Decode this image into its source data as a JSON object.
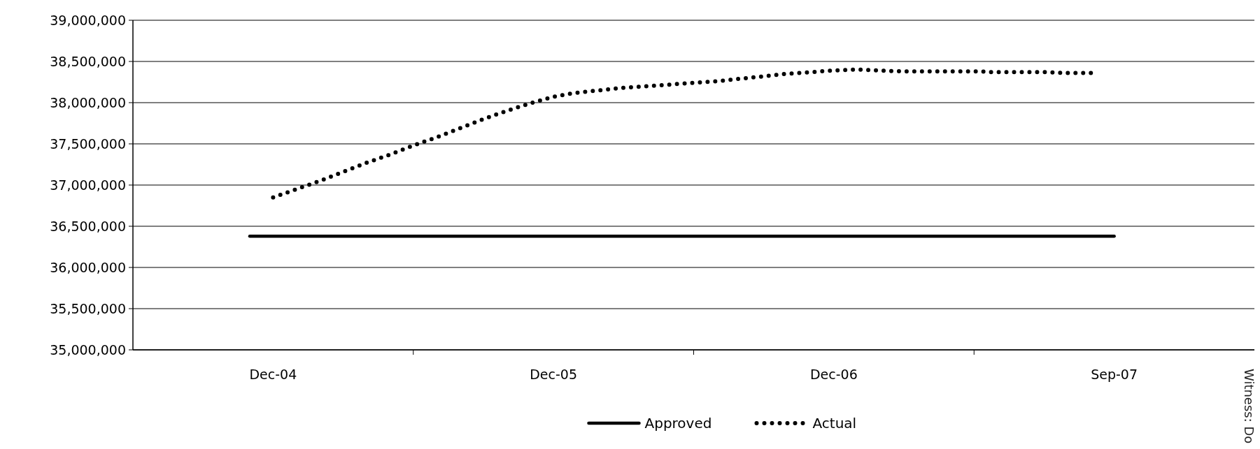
{
  "chart_data": {
    "type": "line",
    "ylim": [
      35000000,
      39000000
    ],
    "yticks": [
      {
        "value": 35000000,
        "label": "35,000,000"
      },
      {
        "value": 35500000,
        "label": "35,500,000"
      },
      {
        "value": 36000000,
        "label": "36,000,000"
      },
      {
        "value": 36500000,
        "label": "36,500,000"
      },
      {
        "value": 37000000,
        "label": "37,000,000"
      },
      {
        "value": 37500000,
        "label": "37,500,000"
      },
      {
        "value": 38000000,
        "label": "38,000,000"
      },
      {
        "value": 38500000,
        "label": "38,500,000"
      },
      {
        "value": 39000000,
        "label": "39,000,000"
      }
    ],
    "categories": [
      null,
      null,
      null,
      null,
      null,
      null,
      "Dec-04",
      null,
      null,
      null,
      null,
      null,
      null,
      null,
      null,
      null,
      null,
      null,
      "Dec-05",
      null,
      null,
      null,
      null,
      null,
      null,
      null,
      null,
      null,
      null,
      null,
      "Dec-06",
      null,
      null,
      null,
      null,
      null,
      null,
      null,
      null,
      null,
      null,
      null,
      "Sep-07",
      null,
      null,
      null,
      null,
      null,
      null
    ],
    "grid": "y",
    "legend": "bottom",
    "series": [
      {
        "name": "Approved",
        "color": "#000000",
        "line_style": "solid",
        "values": [
          null,
          null,
          null,
          null,
          null,
          36380000,
          36380000,
          36380000,
          36380000,
          36380000,
          36380000,
          36380000,
          36380000,
          36380000,
          36380000,
          36380000,
          36380000,
          36380000,
          36380000,
          36380000,
          36380000,
          36380000,
          36380000,
          36380000,
          36380000,
          36380000,
          36380000,
          36380000,
          36380000,
          36380000,
          36380000,
          36380000,
          36380000,
          36380000,
          36380000,
          36380000,
          36380000,
          36380000,
          36380000,
          36380000,
          36380000,
          36380000,
          36380000,
          null,
          null,
          null,
          null,
          null,
          null
        ]
      },
      {
        "name": "Actual",
        "color": "#000000",
        "line_style": "dotted",
        "values": [
          null,
          null,
          null,
          null,
          null,
          null,
          36850000,
          36950000,
          37050000,
          37160000,
          37270000,
          37370000,
          37480000,
          37580000,
          37690000,
          37800000,
          37900000,
          37990000,
          38070000,
          38120000,
          38150000,
          38180000,
          38200000,
          38220000,
          38240000,
          38260000,
          38290000,
          38320000,
          38350000,
          38370000,
          38390000,
          38400000,
          38390000,
          38380000,
          38380000,
          38380000,
          38380000,
          38370000,
          38370000,
          38370000,
          38360000,
          38360000,
          null,
          null,
          null,
          null,
          null,
          null,
          null
        ]
      }
    ],
    "annotations": [
      "Witness: Do"
    ]
  }
}
